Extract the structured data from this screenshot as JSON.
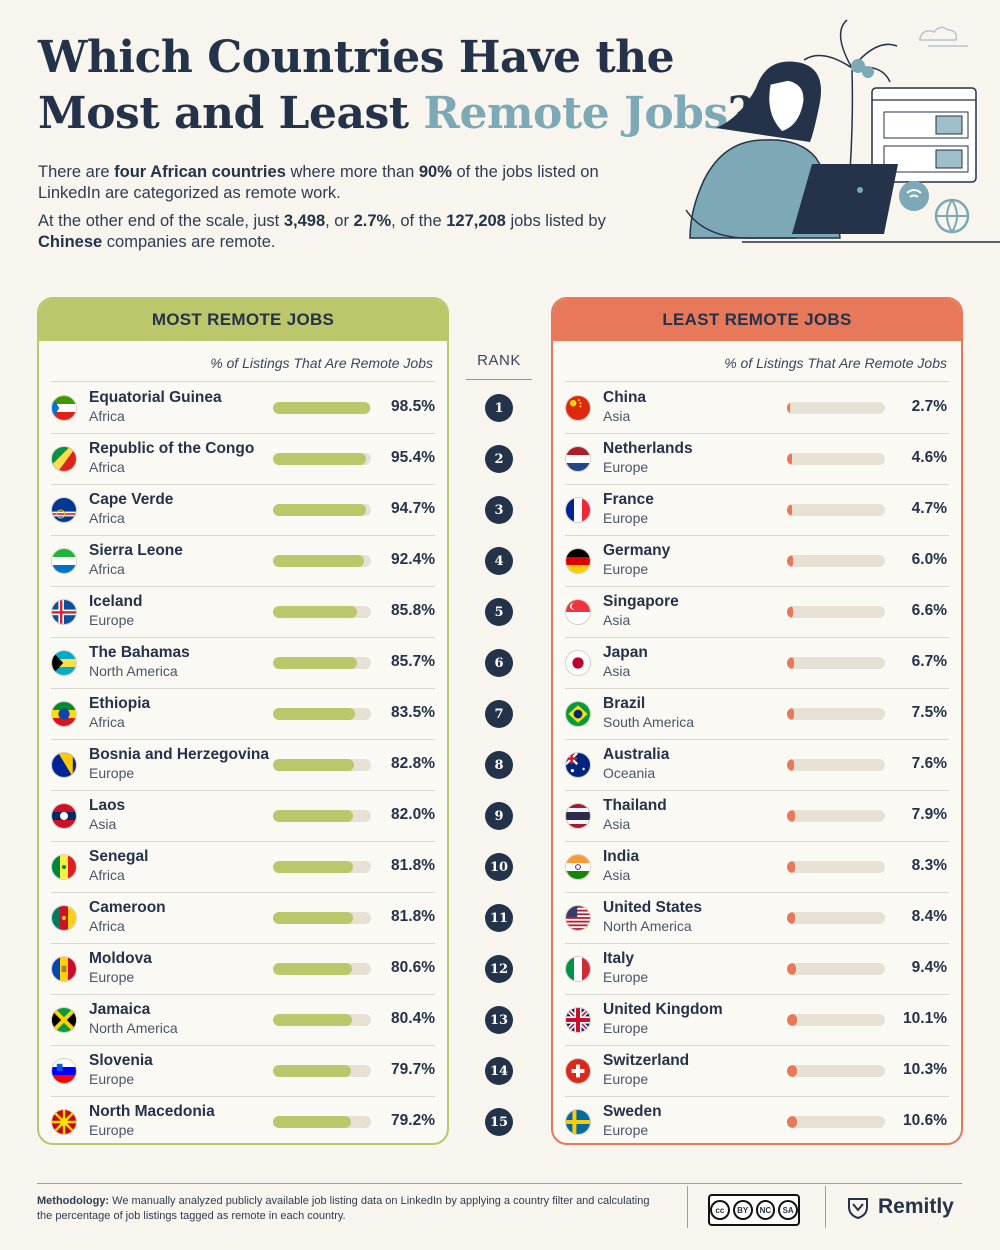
{
  "title": {
    "line1": "Which Countries Have the",
    "line2_prefix": "Most and Least ",
    "line2_accent": "Remote Jobs",
    "line2_suffix": "?"
  },
  "intro": {
    "p1": {
      "a": "There are ",
      "b": "four African countries",
      "c": " where more than ",
      "d": "90%",
      "e": " of the jobs listed on LinkedIn are categorized as remote work."
    },
    "p2": {
      "a": "At the other end of the scale, just ",
      "b": "3,498",
      "c": ", or ",
      "d": "2.7%",
      "e": ", of the ",
      "f": "127,208",
      "g": " jobs listed by ",
      "h": "Chinese",
      "i": " companies are remote."
    }
  },
  "most_header": "MOST REMOTE JOBS",
  "least_header": "LEAST REMOTE JOBS",
  "metric_label": "% of Listings That Are Remote Jobs",
  "rank_label": "RANK",
  "ranks": [
    "1",
    "2",
    "3",
    "4",
    "5",
    "6",
    "7",
    "8",
    "9",
    "10",
    "11",
    "12",
    "13",
    "14",
    "15"
  ],
  "colors": {
    "most": "#bcc66a",
    "least": "#e8785a",
    "navy": "#24324a",
    "accent": "#7da8b6"
  },
  "chart_data": [
    {
      "type": "bar",
      "title": "MOST REMOTE JOBS",
      "ylabel": "% of Listings That Are Remote Jobs",
      "ylim": [
        0,
        100
      ],
      "rows": [
        {
          "rank": "1",
          "country": "Equatorial Guinea",
          "region": "Africa",
          "value": 98.5,
          "label": "98.5%"
        },
        {
          "rank": "2",
          "country": "Republic of the Congo",
          "region": "Africa",
          "value": 95.4,
          "label": "95.4%"
        },
        {
          "rank": "3",
          "country": "Cape Verde",
          "region": "Africa",
          "value": 94.7,
          "label": "94.7%"
        },
        {
          "rank": "4",
          "country": "Sierra Leone",
          "region": "Africa",
          "value": 92.4,
          "label": "92.4%"
        },
        {
          "rank": "5",
          "country": "Iceland",
          "region": "Europe",
          "value": 85.8,
          "label": "85.8%"
        },
        {
          "rank": "6",
          "country": "The Bahamas",
          "region": "North America",
          "value": 85.7,
          "label": "85.7%"
        },
        {
          "rank": "7",
          "country": "Ethiopia",
          "region": "Africa",
          "value": 83.5,
          "label": "83.5%"
        },
        {
          "rank": "8",
          "country": "Bosnia and Herzegovina",
          "region": "Europe",
          "value": 82.8,
          "label": "82.8%"
        },
        {
          "rank": "9",
          "country": "Laos",
          "region": "Asia",
          "value": 82.0,
          "label": "82.0%"
        },
        {
          "rank": "10",
          "country": "Senegal",
          "region": "Africa",
          "value": 81.8,
          "label": "81.8%"
        },
        {
          "rank": "11",
          "country": "Cameroon",
          "region": "Africa",
          "value": 81.8,
          "label": "81.8%"
        },
        {
          "rank": "12",
          "country": "Moldova",
          "region": "Europe",
          "value": 80.6,
          "label": "80.6%"
        },
        {
          "rank": "13",
          "country": "Jamaica",
          "region": "North America",
          "value": 80.4,
          "label": "80.4%"
        },
        {
          "rank": "14",
          "country": "Slovenia",
          "region": "Europe",
          "value": 79.7,
          "label": "79.7%"
        },
        {
          "rank": "15",
          "country": "North Macedonia",
          "region": "Europe",
          "value": 79.2,
          "label": "79.2%"
        }
      ]
    },
    {
      "type": "bar",
      "title": "LEAST REMOTE JOBS",
      "ylabel": "% of Listings That Are Remote Jobs",
      "ylim": [
        0,
        100
      ],
      "rows": [
        {
          "rank": "1",
          "country": "China",
          "region": "Asia",
          "value": 2.7,
          "label": "2.7%"
        },
        {
          "rank": "2",
          "country": "Netherlands",
          "region": "Europe",
          "value": 4.6,
          "label": "4.6%"
        },
        {
          "rank": "3",
          "country": "France",
          "region": "Europe",
          "value": 4.7,
          "label": "4.7%"
        },
        {
          "rank": "4",
          "country": "Germany",
          "region": "Europe",
          "value": 6.0,
          "label": "6.0%"
        },
        {
          "rank": "5",
          "country": "Singapore",
          "region": "Asia",
          "value": 6.6,
          "label": "6.6%"
        },
        {
          "rank": "6",
          "country": "Japan",
          "region": "Asia",
          "value": 6.7,
          "label": "6.7%"
        },
        {
          "rank": "7",
          "country": "Brazil",
          "region": "South America",
          "value": 7.5,
          "label": "7.5%"
        },
        {
          "rank": "8",
          "country": "Australia",
          "region": "Oceania",
          "value": 7.6,
          "label": "7.6%"
        },
        {
          "rank": "9",
          "country": "Thailand",
          "region": "Asia",
          "value": 7.9,
          "label": "7.9%"
        },
        {
          "rank": "10",
          "country": "India",
          "region": "Asia",
          "value": 8.3,
          "label": "8.3%"
        },
        {
          "rank": "11",
          "country": "United States",
          "region": "North America",
          "value": 8.4,
          "label": "8.4%"
        },
        {
          "rank": "12",
          "country": "Italy",
          "region": "Europe",
          "value": 9.4,
          "label": "9.4%"
        },
        {
          "rank": "13",
          "country": "United Kingdom",
          "region": "Europe",
          "value": 10.1,
          "label": "10.1%"
        },
        {
          "rank": "14",
          "country": "Switzerland",
          "region": "Europe",
          "value": 10.3,
          "label": "10.3%"
        },
        {
          "rank": "15",
          "country": "Sweden",
          "region": "Europe",
          "value": 10.6,
          "label": "10.6%"
        }
      ]
    }
  ],
  "footer": {
    "method_label": "Methodology:",
    "method_text": " We manually analyzed publicly available job listing data on LinkedIn by applying a country filter and calculating the percentage of job listings tagged as remote in each country.",
    "license": {
      "cc": "cc",
      "by": "BY",
      "nc": "NC",
      "sa": "SA"
    },
    "brand": "Remitly"
  }
}
